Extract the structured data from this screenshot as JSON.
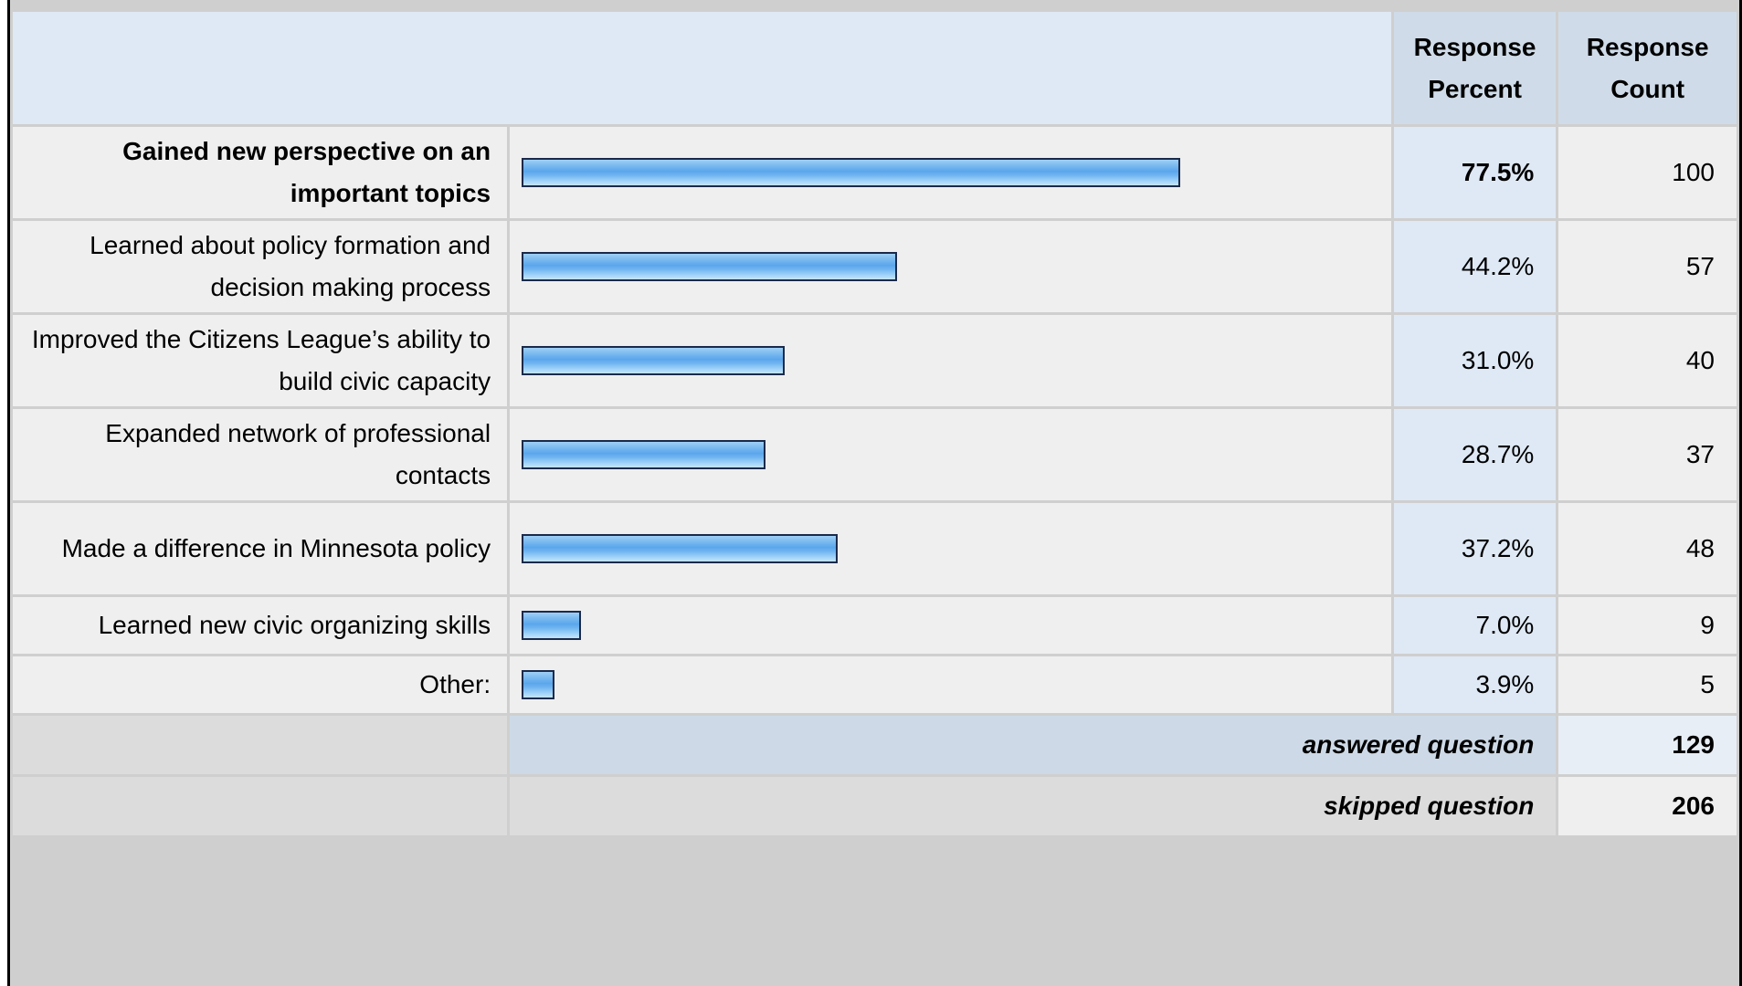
{
  "header": {
    "percent_line1": "Response",
    "percent_line2": "Percent",
    "count_line1": "Response",
    "count_line2": "Count"
  },
  "chart_data": {
    "type": "bar",
    "orientation": "horizontal",
    "xlim": [
      0,
      100
    ],
    "categories": [
      "Gained new perspective on an important topics",
      "Learned about policy formation and decision making process",
      "Improved the Citizens League’s ability to build civic capacity",
      "Expanded network of professional contacts",
      "Made a difference in Minnesota policy",
      "Learned new civic organizing skills",
      "Other:"
    ],
    "values": [
      77.5,
      44.2,
      31.0,
      28.7,
      37.2,
      7.0,
      3.9
    ],
    "percent_labels": [
      "77.5%",
      "44.2%",
      "31.0%",
      "28.7%",
      "37.2%",
      "7.0%",
      "3.9%"
    ],
    "counts": [
      "100",
      "57",
      "40",
      "37",
      "48",
      "9",
      "5"
    ],
    "highlighted_index": 0,
    "colors": {
      "bar_fill": "#6fb4f0",
      "bar_border": "#1b2a4a"
    }
  },
  "footer": {
    "answered_label": "answered question",
    "answered_value": "129",
    "skipped_label": "skipped question",
    "skipped_value": "206"
  }
}
